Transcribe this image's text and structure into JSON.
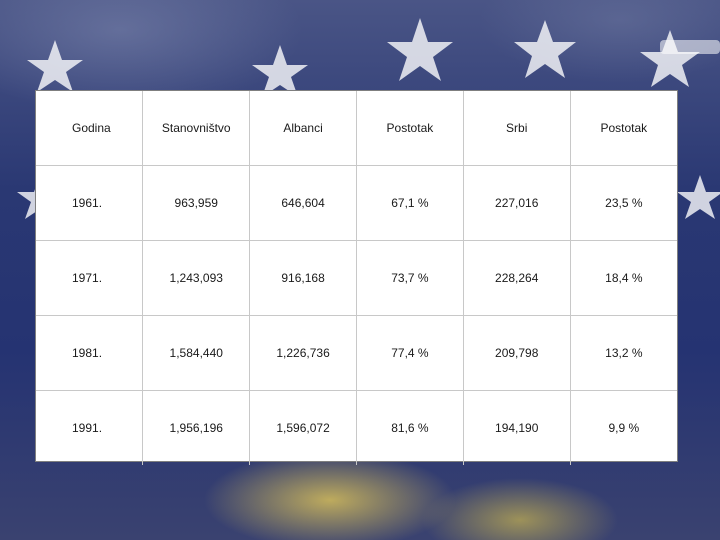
{
  "table": {
    "headers": [
      "Godina",
      "Stanovništvo",
      "Albanci",
      "Postotak",
      "Srbi",
      "Postotak"
    ],
    "rows": [
      [
        "1961.",
        "963,959",
        "646,604",
        "67,1 %",
        "227,016",
        "23,5 %"
      ],
      [
        "1971.",
        "1,243,093",
        "916,168",
        "73,7 %",
        "228,264",
        "18,4 %"
      ],
      [
        "1981.",
        "1,584,440",
        "1,226,736",
        "77,4 %",
        "209,798",
        "13,2 %"
      ],
      [
        "1991.",
        "1,956,196",
        "1,596,072",
        "81,6 %",
        "194,190",
        "9,9 %"
      ]
    ]
  },
  "background": {
    "base_color": "#253372",
    "star_color": "#ffffff",
    "accent_color": "#d6be5a"
  }
}
